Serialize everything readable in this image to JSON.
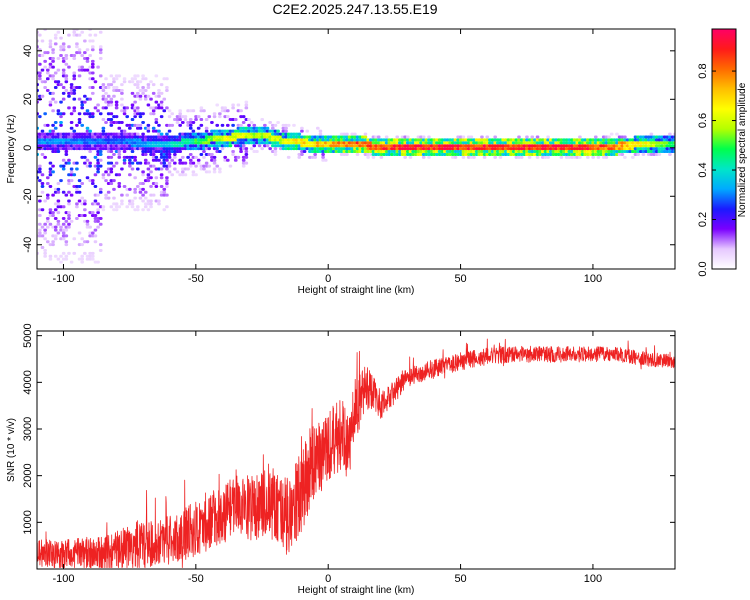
{
  "title": "C2E2.2025.247.13.55.E19",
  "chart_data": [
    {
      "type": "heatmap",
      "title": "C2E2.2025.247.13.55.E19",
      "xlabel": "Height of straight line (km)",
      "ylabel": "Frequency (Hz)",
      "xlim": [
        -110,
        131
      ],
      "ylim": [
        -50,
        49
      ],
      "xticks": [
        -100,
        -50,
        0,
        50,
        100
      ],
      "yticks": [
        -40,
        -20,
        0,
        20,
        40
      ],
      "colorbar": {
        "label": "Normalized spectral amplitude",
        "range": [
          0.0,
          0.97
        ],
        "ticks": [
          "0.0",
          "0.2",
          "0.4",
          "0.6",
          "0.8"
        ],
        "tick_values": [
          0.0,
          0.2,
          0.4,
          0.6,
          0.8
        ],
        "colors": [
          "#ffffff",
          "#e6c8ff",
          "#7a00ff",
          "#1a1aff",
          "#00aaff",
          "#00e6c8",
          "#00ff4c",
          "#b4ff00",
          "#ffff00",
          "#ffbf00",
          "#ff6a00",
          "#ff1a1a",
          "#ff0066"
        ]
      },
      "ridge": {
        "description": "dominant frequency band near 0-5 Hz",
        "x": [
          -110,
          -80,
          -60,
          -36,
          -25,
          -15,
          0,
          10,
          20,
          50,
          100,
          131
        ],
        "freq": [
          2,
          2,
          1,
          4,
          5,
          2,
          1,
          1,
          0,
          0,
          0,
          1
        ],
        "amplitude": [
          0.35,
          0.3,
          0.4,
          0.7,
          0.6,
          0.7,
          0.8,
          0.9,
          0.95,
          0.97,
          0.95,
          0.55
        ]
      }
    },
    {
      "type": "line",
      "xlabel": "Height of straight line (km)",
      "ylabel": "SNR (10 * v/v)",
      "xlim": [
        -110,
        131
      ],
      "ylim": [
        0,
        5100
      ],
      "xticks": [
        -100,
        -50,
        0,
        50,
        100
      ],
      "yticks": [
        1000,
        2000,
        3000,
        4000,
        5000
      ],
      "series": [
        {
          "name": "SNR",
          "color": "#ee2222",
          "trend": {
            "x": [
              -110,
              -100,
              -90,
              -80,
              -70,
              -60,
              -50,
              -40,
              -35,
              -30,
              -20,
              -15,
              -10,
              -5,
              0,
              5,
              8,
              10,
              15,
              20,
              25,
              30,
              40,
              50,
              60,
              70,
              80,
              90,
              100,
              110,
              120,
              131
            ],
            "y": [
              350,
              300,
              300,
              400,
              500,
              650,
              850,
              1150,
              1500,
              1300,
              1400,
              1100,
              1700,
              2300,
              2600,
              2900,
              2600,
              3400,
              3900,
              3500,
              3800,
              4100,
              4300,
              4450,
              4550,
              4600,
              4600,
              4600,
              4600,
              4600,
              4500,
              4450
            ]
          },
          "spread": {
            "x": [
              -110,
              -50,
              -30,
              -10,
              0,
              10,
              20,
              30,
              131
            ],
            "amp": [
              280,
              600,
              700,
              900,
              800,
              700,
              300,
              200,
              150
            ]
          }
        }
      ]
    }
  ]
}
